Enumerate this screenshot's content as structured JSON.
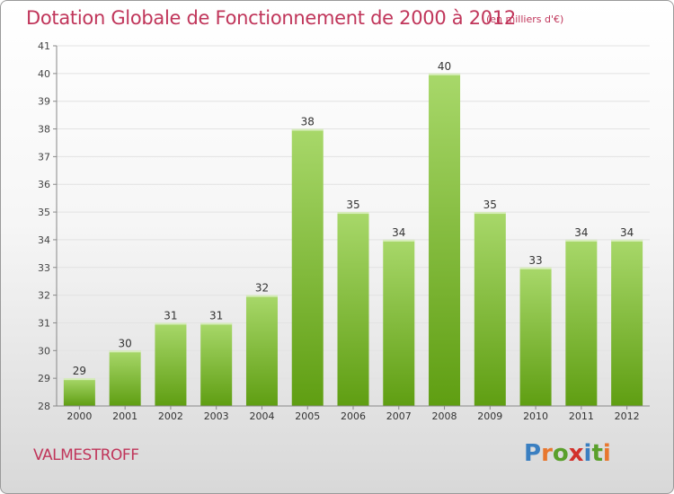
{
  "header": {
    "title": "Dotation Globale de Fonctionnement de 2000 à 2012",
    "unit": "(en milliers d'€)"
  },
  "footer": {
    "commune": "VALMESTROFF",
    "logo": "Proxiti"
  },
  "colors": {
    "title": "#c0355a",
    "bar_top": "#a8d86a",
    "bar_bottom": "#5f9e12",
    "logo_letters": [
      "#3a7fc1",
      "#e8772e",
      "#5aa02c",
      "#d2312b",
      "#3a7fc1",
      "#5aa02c",
      "#e8772e"
    ]
  },
  "chart_data": {
    "type": "bar",
    "title": "Dotation Globale de Fonctionnement de 2000 à 2012",
    "subtitle": "(en milliers d'€)",
    "xlabel": "",
    "ylabel": "",
    "ylim": [
      28,
      41
    ],
    "yticks": [
      28,
      29,
      30,
      31,
      32,
      33,
      34,
      35,
      36,
      37,
      38,
      39,
      40,
      41
    ],
    "grid": true,
    "categories": [
      "2000",
      "2001",
      "2002",
      "2003",
      "2004",
      "2005",
      "2006",
      "2007",
      "2008",
      "2009",
      "2010",
      "2011",
      "2012"
    ],
    "values": [
      29,
      30,
      31,
      31,
      32,
      38,
      35,
      34,
      40,
      35,
      33,
      34,
      34
    ],
    "data_labels": [
      "29",
      "30",
      "31",
      "31",
      "32",
      "38",
      "35",
      "34",
      "40",
      "35",
      "33",
      "34",
      "34"
    ]
  }
}
